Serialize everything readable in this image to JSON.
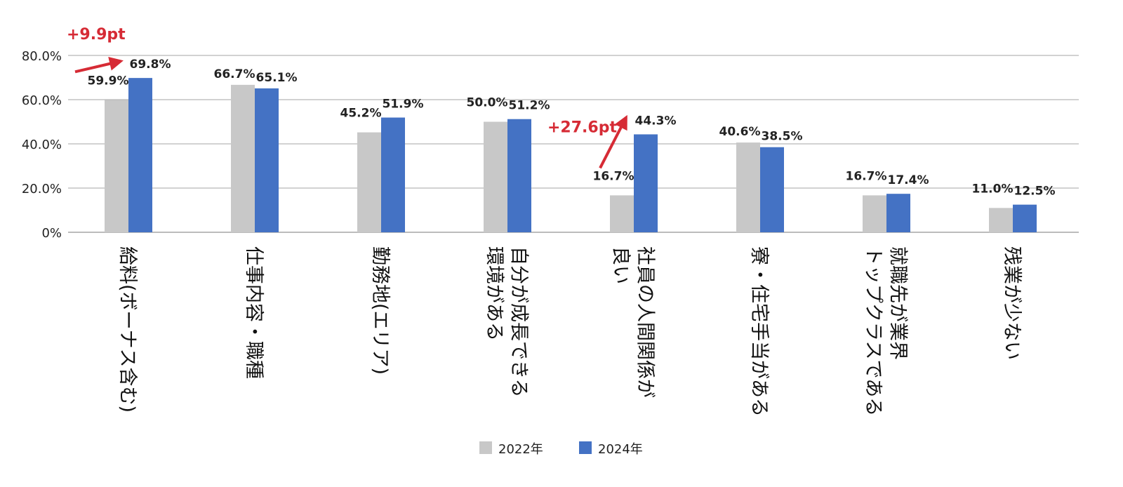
{
  "chart_data": {
    "type": "bar",
    "categories": [
      "給料(ボーナス含む)",
      "仕事内容・職種",
      "勤務地(エリア)",
      "自分が成長できる環境がある",
      "社員の人間関係が良い",
      "寮・住宅手当がある",
      "就職先が業界トップクラスである",
      "残業が少ない"
    ],
    "category_lines": [
      [
        "給料(ボーナス含む)"
      ],
      [
        "仕事内容・職種"
      ],
      [
        "勤務地(エリア)"
      ],
      [
        "自分が成長できる",
        "環境がある"
      ],
      [
        "社員の人間関係が",
        "良い"
      ],
      [
        "寮・住宅手当がある"
      ],
      [
        "就職先が業界",
        "トップクラスである"
      ],
      [
        "残業が少ない"
      ]
    ],
    "series": [
      {
        "name": "2022年",
        "values": [
          59.9,
          66.7,
          45.2,
          50.0,
          16.7,
          40.6,
          16.7,
          11.0
        ],
        "labels": [
          "59.9%",
          "66.7%",
          "45.2%",
          "50.0%",
          "16.7%",
          "40.6%",
          "16.7%",
          "11.0%"
        ],
        "color": "#c8c8c8"
      },
      {
        "name": "2024年",
        "values": [
          69.8,
          65.1,
          51.9,
          51.2,
          44.3,
          38.5,
          17.4,
          12.5
        ],
        "labels": [
          "69.8%",
          "65.1%",
          "51.9%",
          "51.2%",
          "44.3%",
          "38.5%",
          "17.4%",
          "12.5%"
        ],
        "color": "#4472c4"
      }
    ],
    "yticks": [
      {
        "value": 0,
        "label": "0%"
      },
      {
        "value": 20,
        "label": "20.0%"
      },
      {
        "value": 40,
        "label": "40.0%"
      },
      {
        "value": 60,
        "label": "60.0%"
      },
      {
        "value": 80,
        "label": "80.0%"
      }
    ],
    "ylim": [
      0,
      80
    ],
    "grid": true,
    "legend_position": "bottom",
    "annotations": [
      {
        "category_index": 0,
        "text": "+9.9pt",
        "color": "#d62b35"
      },
      {
        "category_index": 4,
        "text": "+27.6pt",
        "color": "#d62b35"
      }
    ]
  }
}
